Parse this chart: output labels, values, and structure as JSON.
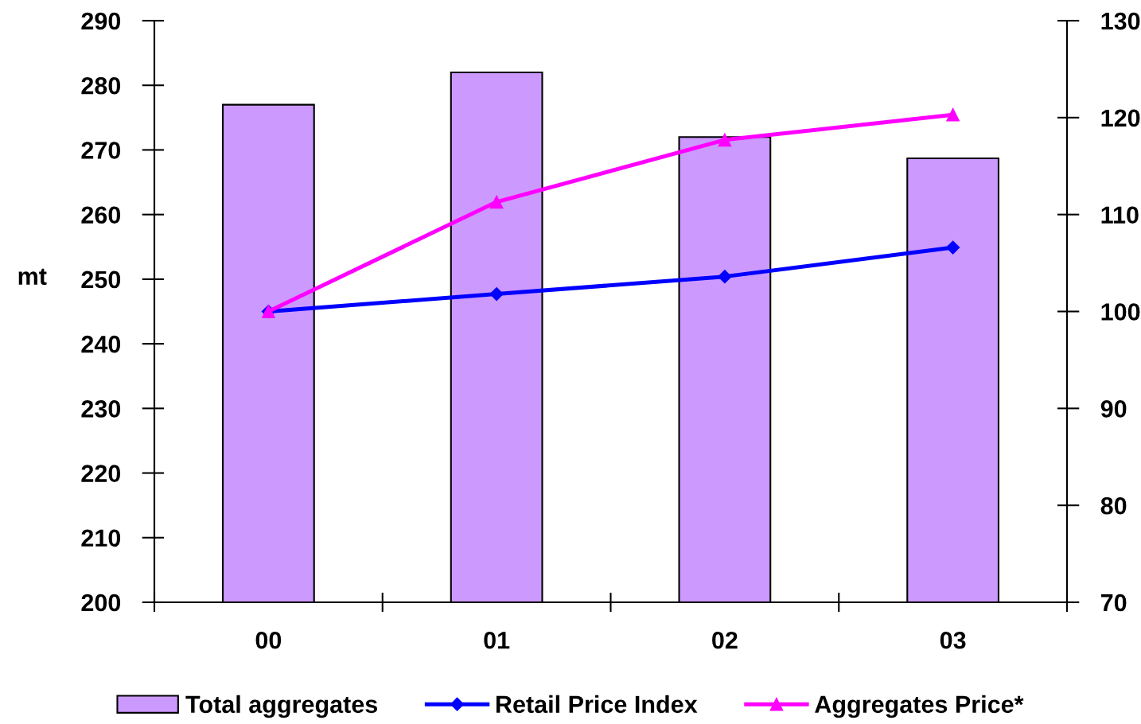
{
  "chart_data": {
    "type": "bar",
    "ylabel": "mt",
    "categories": [
      "00",
      "01",
      "02",
      "03"
    ],
    "series": [
      {
        "name": "Total aggregates",
        "color": "#cc99ff",
        "values": [
          277,
          282,
          272,
          268.7
        ]
      },
      {
        "name": "Retail Price Index",
        "type": "line",
        "axis": "y2",
        "color": "#0000ff",
        "marker": "diamond",
        "values": [
          100,
          101.8,
          103.6,
          106.6
        ]
      },
      {
        "name": "Aggregates Price*",
        "type": "line",
        "axis": "y2",
        "color": "#ff00ff",
        "marker": "triangle",
        "values": [
          100,
          111.3,
          117.7,
          120.3
        ]
      }
    ],
    "ylim": [
      200,
      290
    ],
    "yticks": [
      200,
      210,
      220,
      230,
      240,
      250,
      260,
      270,
      280,
      290
    ],
    "y2lim": [
      70,
      130
    ],
    "y2ticks": [
      70,
      80,
      90,
      100,
      110,
      120,
      130
    ],
    "legend": "bottom",
    "grid": false,
    "line_style": "solid"
  }
}
